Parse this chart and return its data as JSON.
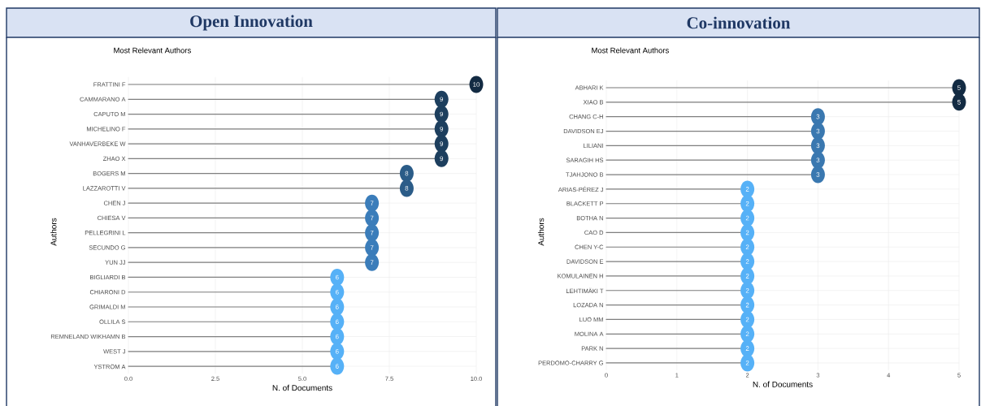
{
  "chart_data": [
    {
      "type": "lollipop",
      "orientation": "horizontal",
      "title": "Open Innovation",
      "subtitle": "Most Relevant Authors",
      "xlabel": "N. of Documents",
      "ylabel": "Authors",
      "categories": [
        "FRATTINI F",
        "CAMMARANO A",
        "CAPUTO M",
        "MICHELINO F",
        "VANHAVERBEKE W",
        "ZHAO X",
        "BOGERS M",
        "LAZZAROTTI V",
        "CHEN J",
        "CHIESA V",
        "PELLEGRINI L",
        "SECUNDO G",
        "YUN JJ",
        "BIGLIARDI B",
        "CHIARONI D",
        "GRIMALDI M",
        "OLLILA S",
        "REMNELAND WIKHAMN B",
        "WEST J",
        "YSTRÖM A"
      ],
      "values": [
        10,
        9,
        9,
        9,
        9,
        9,
        8,
        8,
        7,
        7,
        7,
        7,
        7,
        6,
        6,
        6,
        6,
        6,
        6,
        6
      ],
      "colors": [
        "#132b43",
        "#1d3f5e",
        "#1d3f5e",
        "#1d3f5e",
        "#1d3f5e",
        "#1d3f5e",
        "#2b5c88",
        "#2b5c88",
        "#3b7dba",
        "#3b7dba",
        "#3b7dba",
        "#3b7dba",
        "#3b7dba",
        "#56b1f7",
        "#56b1f7",
        "#56b1f7",
        "#56b1f7",
        "#56b1f7",
        "#56b1f7",
        "#56b1f7"
      ],
      "xlim": [
        0,
        10
      ],
      "xticks": [
        {
          "value": 0,
          "label": "0.0"
        },
        {
          "value": 2.5,
          "label": "2.5"
        },
        {
          "value": 5,
          "label": "5.0"
        },
        {
          "value": 7.5,
          "label": "7.5"
        },
        {
          "value": 10,
          "label": "10.0"
        }
      ],
      "data_labels": true,
      "grid": true
    },
    {
      "type": "lollipop",
      "orientation": "horizontal",
      "title": "Co-innovation",
      "subtitle": "Most Relevant Authors",
      "xlabel": "N. of Documents",
      "ylabel": "Authors",
      "categories": [
        "ABHARI K",
        "XIAO B",
        "CHANG C-H",
        "DAVIDSON EJ",
        "LILIANI",
        "SARAGIH HS",
        "TJAHJONO B",
        "ARIAS-PÉREZ J",
        "BLACKETT P",
        "BOTHA N",
        "CAO D",
        "CHEN Y-C",
        "DAVIDSON E",
        "KOMULAINEN H",
        "LEHTIMÄKI T",
        "LOZADA N",
        "LUO MM",
        "MOLINA A",
        "PARK N",
        "PERDOMO-CHARRY G"
      ],
      "values": [
        5,
        5,
        3,
        3,
        3,
        3,
        3,
        2,
        2,
        2,
        2,
        2,
        2,
        2,
        2,
        2,
        2,
        2,
        2,
        2
      ],
      "colors": [
        "#132b43",
        "#132b43",
        "#3a78b0",
        "#3a78b0",
        "#3a78b0",
        "#3a78b0",
        "#3a78b0",
        "#56b1f7",
        "#56b1f7",
        "#56b1f7",
        "#56b1f7",
        "#56b1f7",
        "#56b1f7",
        "#56b1f7",
        "#56b1f7",
        "#56b1f7",
        "#56b1f7",
        "#56b1f7",
        "#56b1f7",
        "#56b1f7"
      ],
      "xlim": [
        0,
        5
      ],
      "xticks": [
        0,
        1,
        2,
        3,
        4,
        5
      ],
      "data_labels": true,
      "grid": true
    }
  ]
}
